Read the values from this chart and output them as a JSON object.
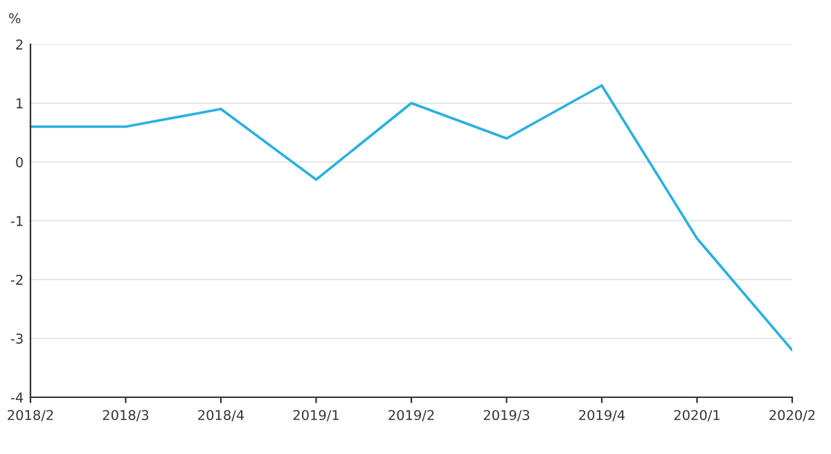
{
  "chart_data": {
    "type": "line",
    "ylabel": "%",
    "categories": [
      "2018/2",
      "2018/3",
      "2018/4",
      "2019/1",
      "2019/2",
      "2019/3",
      "2019/4",
      "2020/1",
      "2020/2"
    ],
    "series": [
      {
        "color": "#29b0e0",
        "values": [
          0.6,
          0.6,
          0.9,
          -0.3,
          1.0,
          0.4,
          1.3,
          -1.3,
          -3.2
        ]
      }
    ],
    "ylim": [
      -4,
      2
    ],
    "yticks": [
      -4,
      -3,
      -2,
      -1,
      0,
      1,
      2
    ],
    "grid": "y",
    "legend": false,
    "marker": "none",
    "line_style": "solid"
  }
}
